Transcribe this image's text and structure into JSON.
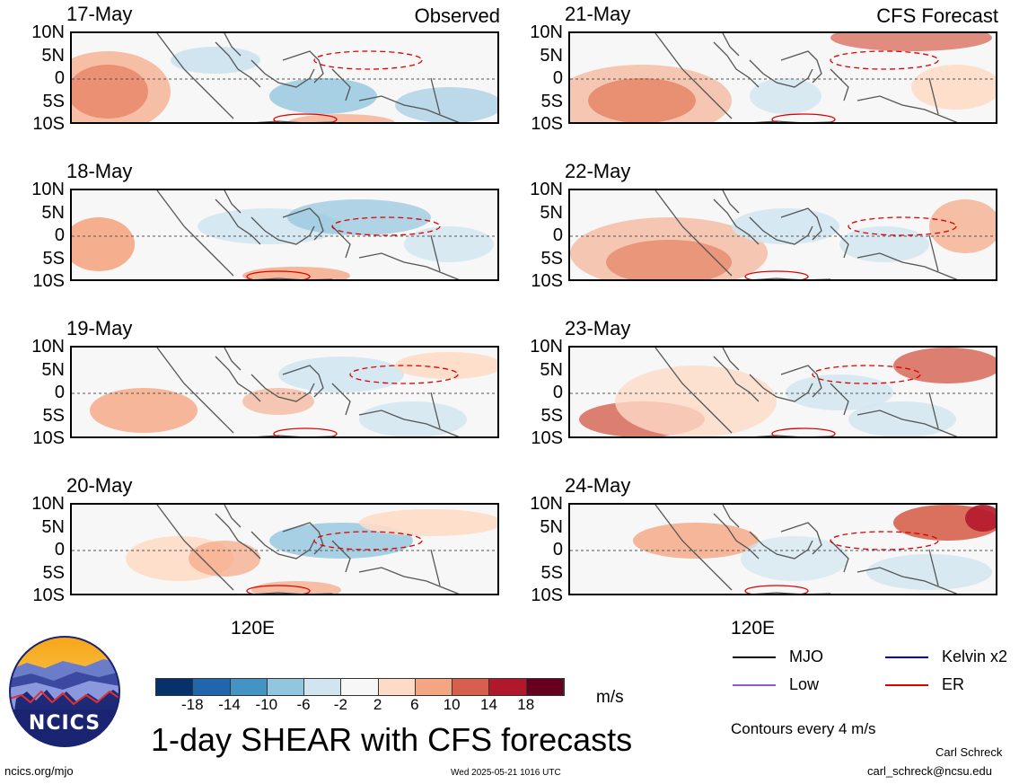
{
  "panels": [
    {
      "date": "17-May",
      "corner": "Observed",
      "column": "observed"
    },
    {
      "date": "18-May",
      "corner": "",
      "column": "observed"
    },
    {
      "date": "19-May",
      "corner": "",
      "column": "observed"
    },
    {
      "date": "20-May",
      "corner": "",
      "column": "observed"
    },
    {
      "date": "21-May",
      "corner": "CFS Forecast",
      "column": "forecast"
    },
    {
      "date": "22-May",
      "corner": "",
      "column": "forecast"
    },
    {
      "date": "23-May",
      "corner": "",
      "column": "forecast"
    },
    {
      "date": "24-May",
      "corner": "",
      "column": "forecast"
    }
  ],
  "lat_labels": [
    "10N",
    "5N",
    "0",
    "5S",
    "10S"
  ],
  "lon_label": "120E",
  "colorbar": {
    "colors": [
      "#08306b",
      "#2166ac",
      "#4393c3",
      "#92c5de",
      "#d1e5f0",
      "#f7f7f7",
      "#fddbc7",
      "#f4a582",
      "#d6604d",
      "#b2182b",
      "#67001f"
    ],
    "tick_labels": [
      "-18",
      "-14",
      "-10",
      "-6",
      "-2",
      "2",
      "6",
      "10",
      "14",
      "18"
    ],
    "unit": "m/s"
  },
  "legend": {
    "items": [
      {
        "label": "MJO",
        "color": "#000000"
      },
      {
        "label": "Kelvin x2",
        "color": "#0000cc"
      },
      {
        "label": "Low",
        "color": "#9955cc"
      },
      {
        "label": "ER",
        "color": "#dd0000"
      }
    ],
    "contour_note": "Contours every 4 m/s"
  },
  "logo": {
    "text": "NCICS"
  },
  "title": "1-day SHEAR with CFS forecasts",
  "footer": {
    "url": "ncics.org/mjo",
    "timestamp": "Wed 2025-05-21 1016 UTC",
    "author": "Carl Schreck",
    "email": "carl_schreck@ncsu.edu"
  }
}
